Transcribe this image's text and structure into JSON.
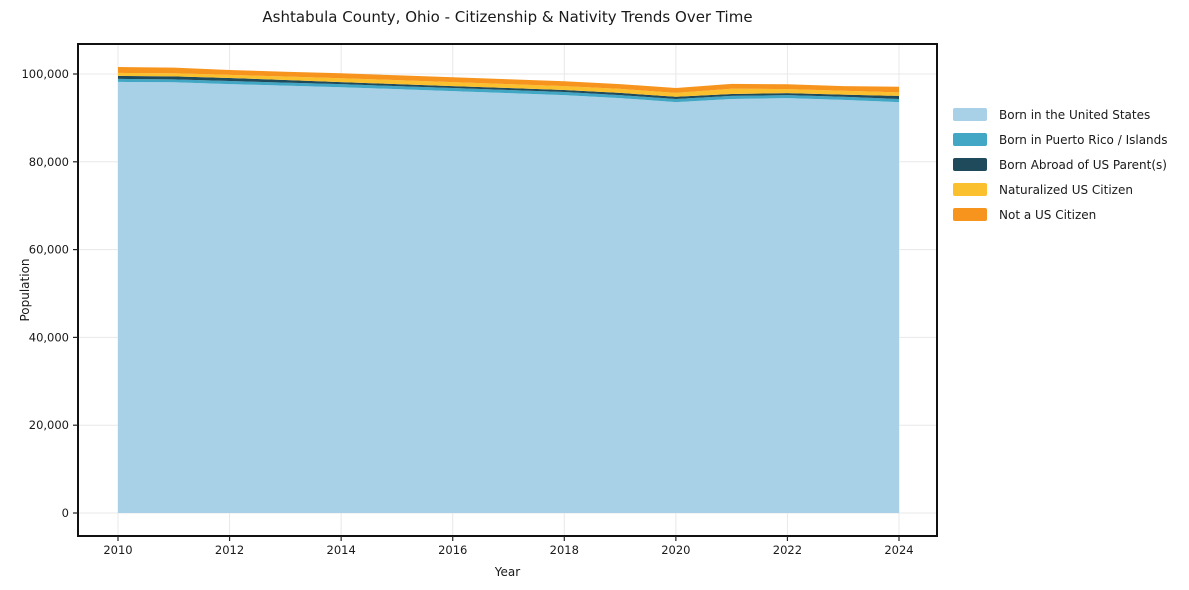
{
  "chart_data": {
    "type": "area",
    "stacked": true,
    "title": "Ashtabula County, Ohio - Citizenship & Nativity Trends Over Time",
    "xlabel": "Year",
    "ylabel": "Population",
    "x": [
      2010,
      2011,
      2012,
      2013,
      2014,
      2015,
      2016,
      2017,
      2018,
      2019,
      2020,
      2021,
      2022,
      2023,
      2024
    ],
    "series": [
      {
        "name": "Born in the United States",
        "color": "#A8D1E8",
        "values": [
          98200,
          98100,
          97700,
          97350,
          97000,
          96550,
          96100,
          95650,
          95200,
          94500,
          93600,
          94300,
          94500,
          94100,
          93600
        ]
      },
      {
        "name": "Born in Puerto Rico / Islands",
        "color": "#41A7C4",
        "values": [
          680,
          680,
          700,
          700,
          700,
          700,
          700,
          700,
          700,
          700,
          700,
          700,
          700,
          700,
          700
        ]
      },
      {
        "name": "Born Abroad of US Parent(s)",
        "color": "#1F4A5C",
        "values": [
          680,
          680,
          700,
          580,
          450,
          450,
          450,
          450,
          450,
          500,
          500,
          450,
          450,
          500,
          700
        ]
      },
      {
        "name": "Naturalized US Citizen",
        "color": "#FBC02D",
        "values": [
          680,
          700,
          700,
          800,
          900,
          900,
          900,
          900,
          900,
          900,
          900,
          1200,
          900,
          900,
          800
        ]
      },
      {
        "name": "Not a US Citizen",
        "color": "#F7941E",
        "values": [
          1360,
          1300,
          1100,
          1100,
          1100,
          1100,
          1100,
          1100,
          1100,
          1100,
          1100,
          1100,
          1100,
          1050,
          1300
        ]
      }
    ],
    "x_tick_labels": [
      "2010",
      "2012",
      "2014",
      "2016",
      "2018",
      "2020",
      "2022",
      "2024"
    ],
    "x_tick_values": [
      2010,
      2012,
      2014,
      2016,
      2018,
      2020,
      2022,
      2024
    ],
    "y_tick_labels": [
      "0",
      "20,000",
      "40,000",
      "60,000",
      "80,000",
      "100,000"
    ],
    "y_tick_values": [
      0,
      20000,
      40000,
      60000,
      80000,
      100000
    ],
    "xlim": [
      2010,
      2024
    ],
    "ylim": [
      0,
      100000
    ],
    "grid": true,
    "grid_color": "#E8E8E8",
    "frame_color": "#111111",
    "legend_position": "outside-right"
  }
}
